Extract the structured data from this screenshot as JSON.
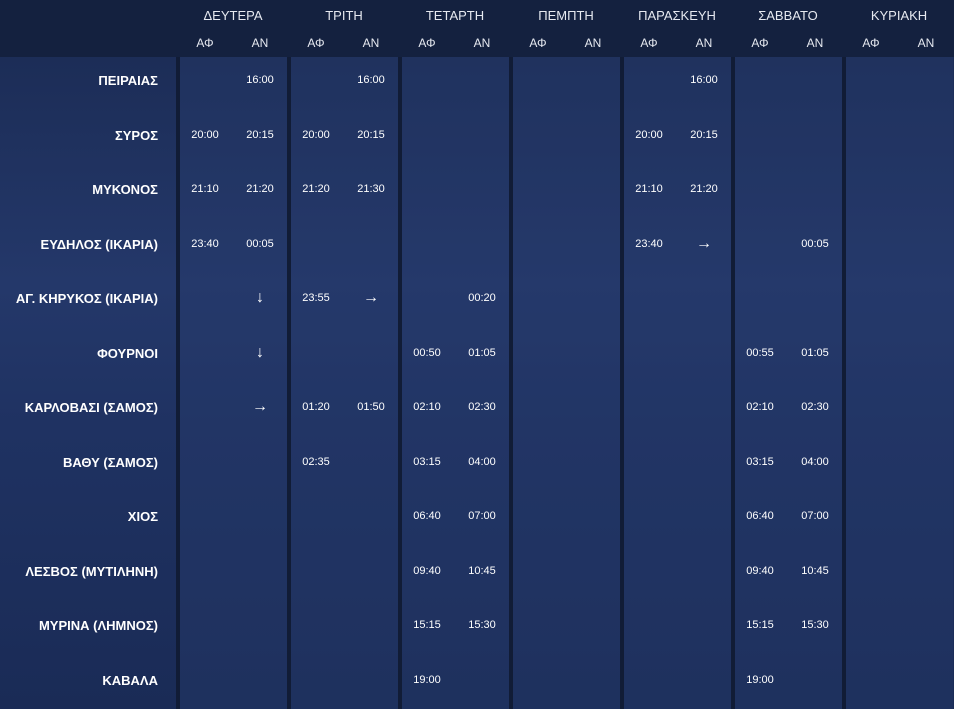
{
  "days": [
    "ΔΕΥΤΕΡΑ",
    "ΤΡΙΤΗ",
    "ΤΕΤΑΡΤΗ",
    "ΠΕΜΠΤΗ",
    "ΠΑΡΑΣΚΕΥΗ",
    "ΣΑΒΒΑΤΟ",
    "ΚΥΡΙΑΚΗ"
  ],
  "subheaders": [
    "ΑΦ",
    "ΑΝ"
  ],
  "rows": [
    {
      "port": "ΠΕΙΡΑΙΑΣ",
      "times": [
        null,
        "16:00",
        null,
        "16:00",
        null,
        null,
        null,
        null,
        null,
        "16:00",
        null,
        null,
        null,
        null
      ]
    },
    {
      "port": "ΣΥΡΟΣ",
      "times": [
        "20:00",
        "20:15",
        "20:00",
        "20:15",
        null,
        null,
        null,
        null,
        "20:00",
        "20:15",
        null,
        null,
        null,
        null
      ]
    },
    {
      "port": "ΜΥΚΟΝΟΣ",
      "times": [
        "21:10",
        "21:20",
        "21:20",
        "21:30",
        null,
        null,
        null,
        null,
        "21:10",
        "21:20",
        null,
        null,
        null,
        null
      ]
    },
    {
      "port": "ΕΥΔΗΛΟΣ (ΙΚΑΡΙΑ)",
      "times": [
        "23:40",
        "00:05",
        null,
        null,
        null,
        null,
        null,
        null,
        "23:40",
        "→",
        null,
        "00:05",
        null,
        null
      ]
    },
    {
      "port": "ΑΓ. ΚΗΡΥΚΟΣ (ΙΚΑΡΙΑ)",
      "times": [
        null,
        "↓",
        "23:55",
        "→",
        null,
        "00:20",
        null,
        null,
        null,
        null,
        null,
        null,
        null,
        null
      ]
    },
    {
      "port": "ΦΟΥΡΝΟΙ",
      "times": [
        null,
        "↓",
        null,
        null,
        "00:50",
        "01:05",
        null,
        null,
        null,
        null,
        "00:55",
        "01:05",
        null,
        null
      ]
    },
    {
      "port": "ΚΑΡΛΟΒΑΣΙ (ΣΑΜΟΣ)",
      "times": [
        null,
        "→",
        "01:20",
        "01:50",
        "02:10",
        "02:30",
        null,
        null,
        null,
        null,
        "02:10",
        "02:30",
        null,
        null
      ]
    },
    {
      "port": "ΒΑΘΥ (ΣΑΜΟΣ)",
      "times": [
        null,
        null,
        "02:35",
        null,
        "03:15",
        "04:00",
        null,
        null,
        null,
        null,
        "03:15",
        "04:00",
        null,
        null
      ]
    },
    {
      "port": "ΧΙΟΣ",
      "times": [
        null,
        null,
        null,
        null,
        "06:40",
        "07:00",
        null,
        null,
        null,
        null,
        "06:40",
        "07:00",
        null,
        null
      ]
    },
    {
      "port": "ΛΕΣΒΟΣ (ΜΥΤΙΛΗΝΗ)",
      "times": [
        null,
        null,
        null,
        null,
        "09:40",
        "10:45",
        null,
        null,
        null,
        null,
        "09:40",
        "10:45",
        null,
        null
      ]
    },
    {
      "port": "ΜΥΡΙΝΑ (ΛΗΜΝΟΣ)",
      "times": [
        null,
        null,
        null,
        null,
        "15:15",
        "15:30",
        null,
        null,
        null,
        null,
        "15:15",
        "15:30",
        null,
        null
      ]
    },
    {
      "port": "ΚΑΒΑΛΑ",
      "times": [
        null,
        null,
        null,
        null,
        "19:00",
        null,
        null,
        null,
        null,
        null,
        "19:00",
        null,
        null,
        null
      ]
    }
  ]
}
